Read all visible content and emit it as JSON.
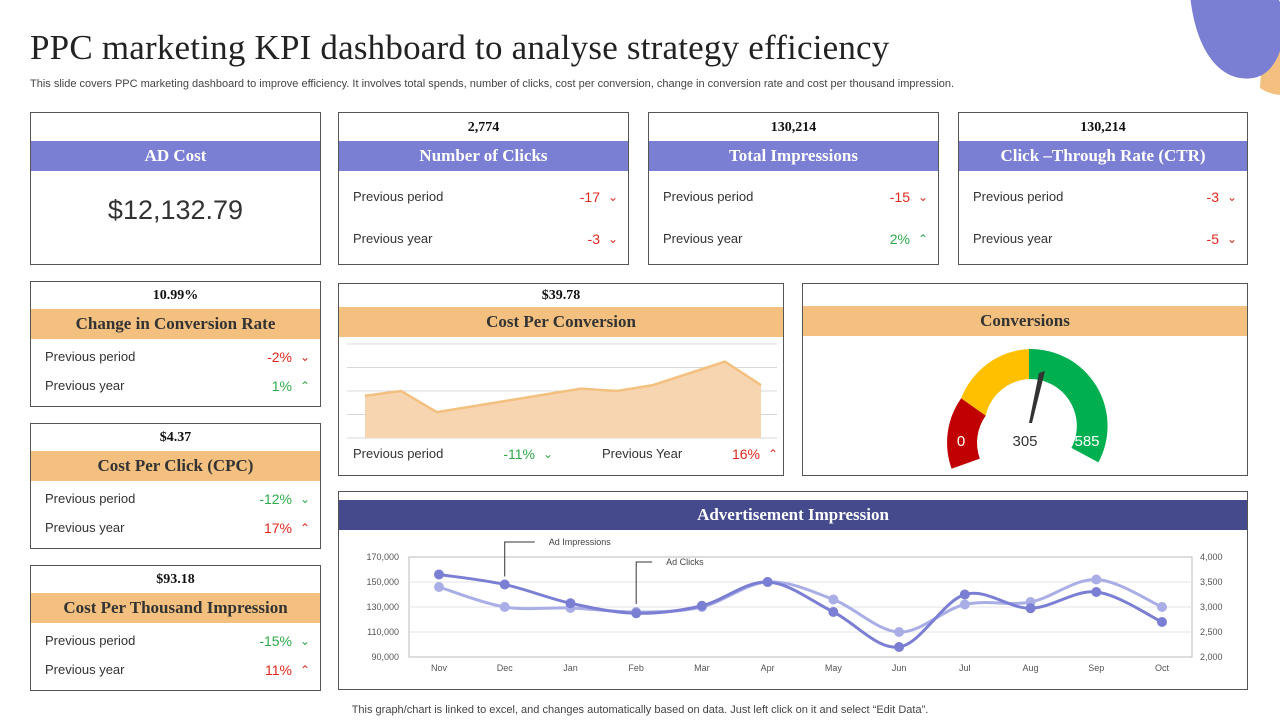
{
  "title": "PPC marketing KPI dashboard to analyse strategy efficiency",
  "subtitle": "This slide covers PPC marketing dashboard to improve efficiency. It involves total spends, number of clicks, cost per conversion, change in conversion rate and cost per thousand impression.",
  "footer": "This graph/chart is linked to excel,  and changes automatically based on data. Just left click on it and select “Edit Data”.",
  "colors": {
    "purple": "#7b7fd4",
    "orange": "#f3c07f",
    "navy": "#454a8c",
    "red": "#e0281e",
    "green": "#2eaa4a"
  },
  "ad_cost": {
    "label": "AD Cost",
    "value": "$12,132.79"
  },
  "clicks": {
    "value": "2,774",
    "label": "Number of Clicks",
    "rows": [
      {
        "label": "Previous  period",
        "value": "-17",
        "trend": "down",
        "icon": "chevron-down-icon"
      },
      {
        "label": "Previous  year",
        "value": "-3",
        "trend": "down",
        "icon": "chevron-down-icon"
      }
    ]
  },
  "impressions": {
    "value": "130,214",
    "label": "Total Impressions",
    "rows": [
      {
        "label": "Previous  period",
        "value": "-15",
        "trend": "down",
        "icon": "chevron-down-icon"
      },
      {
        "label": "Previous  year",
        "value": "2%",
        "trend": "up",
        "icon": "chevron-up-icon"
      }
    ]
  },
  "ctr": {
    "value": "130,214",
    "label": "Click –Through Rate (CTR)",
    "rows": [
      {
        "label": "Previous  period",
        "value": "-3",
        "trend": "down",
        "icon": "chevron-down-icon"
      },
      {
        "label": "Previous  year",
        "value": "-5",
        "trend": "down",
        "icon": "chevron-down-icon"
      }
    ]
  },
  "conv_rate": {
    "value": "10.99%",
    "label": "Change in Conversion Rate",
    "rows": [
      {
        "label": "Previous  period",
        "value": "-2%",
        "trend": "down",
        "icon": "chevron-down-icon"
      },
      {
        "label": "Previous  year",
        "value": "1%",
        "trend": "up",
        "icon": "chevron-up-icon"
      }
    ]
  },
  "cpc": {
    "value": "$4.37",
    "label": "Cost Per Click (CPC)",
    "rows": [
      {
        "label": "Previous  period",
        "value": "-12%",
        "trend": "down",
        "icon": "chevron-down-icon"
      },
      {
        "label": "Previous  year",
        "value": "17%",
        "trend": "up",
        "icon": "chevron-up-icon"
      }
    ]
  },
  "cpm": {
    "value": "$93.18",
    "label": "Cost Per Thousand Impression",
    "rows": [
      {
        "label": "Previous  period",
        "value": "-15%",
        "trend": "down",
        "icon": "chevron-down-icon"
      },
      {
        "label": "Previous  year",
        "value": "11%",
        "trend": "up",
        "icon": "chevron-up-icon"
      }
    ]
  },
  "cost_per_conversion": {
    "value": "$39.78",
    "label": "Cost Per Conversion",
    "period": {
      "label": "Previous  period",
      "value": "-11%",
      "trend": "down",
      "icon": "chevron-down-icon"
    },
    "year": {
      "label": "Previous  Year",
      "value": "16%",
      "trend": "up",
      "icon": "chevron-up-icon"
    }
  },
  "conversions": {
    "label": "Conversions",
    "min": "0",
    "value": "305",
    "max": "585"
  },
  "ad_impression": {
    "label": "Advertisement Impression"
  },
  "chart_data": [
    {
      "type": "area",
      "title": "",
      "x": [
        1,
        2,
        3,
        4,
        5,
        6,
        7,
        8,
        9,
        10,
        11,
        12
      ],
      "series": [
        {
          "values": [
            36,
            40,
            22,
            27,
            32,
            37,
            42,
            40,
            45,
            55,
            65,
            45
          ]
        }
      ],
      "ylim": [
        0,
        80
      ],
      "grid": true,
      "axes_visible": false
    },
    {
      "type": "line",
      "title": "",
      "categories": [
        "Nov",
        "Dec",
        "Jan",
        "Feb",
        "Mar",
        "Apr",
        "May",
        "Jun",
        "Jul",
        "Aug",
        "Sep",
        "Oct"
      ],
      "series": [
        {
          "name": "Ad Impressions",
          "axis": "left",
          "color": "#7b7fd4",
          "values": [
            156000,
            148000,
            133000,
            125000,
            131000,
            150000,
            126000,
            98000,
            140000,
            129000,
            142000,
            118000
          ]
        },
        {
          "name": "Ad Clicks",
          "axis": "right",
          "color": "#aaaee6",
          "values": [
            3400,
            3000,
            2980,
            2900,
            3000,
            3500,
            3150,
            2500,
            3050,
            3100,
            3550,
            3000
          ]
        }
      ],
      "ylim": [
        90000,
        170000
      ],
      "y2lim": [
        2000,
        4000
      ],
      "yticks": [
        "90,000",
        "110,000",
        "130,000",
        "150,000",
        "170,000"
      ],
      "y2ticks": [
        "2,000",
        "2,500",
        "3,000",
        "3,500",
        "4,000"
      ],
      "grid": true
    }
  ]
}
